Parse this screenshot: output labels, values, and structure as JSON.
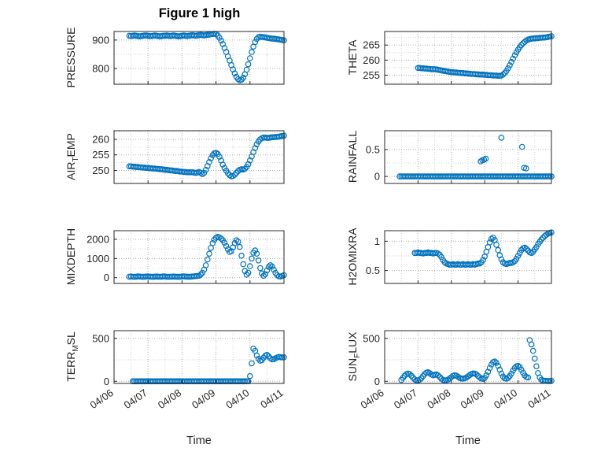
{
  "title": "Figure 1 high",
  "xlabel": "Time",
  "colors": {
    "marker": "#0072BD",
    "axis": "#262626",
    "grid": "#ADADAD",
    "grid_minor": "#D2D2D2",
    "tick_label": "#262626",
    "background": "#FFFFFF"
  },
  "x_ticks": {
    "values": [
      6,
      7,
      8,
      9,
      10,
      11
    ],
    "labels": [
      "04/06",
      "04/07",
      "04/08",
      "04/09",
      "04/10",
      "04/11"
    ]
  },
  "chart_data": [
    {
      "type": "scatter",
      "name": "pressure",
      "ylabel": {
        "pre": "PRESSURE",
        "sub": "",
        "post": ""
      },
      "xlim": [
        6,
        11
      ],
      "ylim": [
        745,
        930
      ],
      "yticks": [
        800,
        900
      ],
      "x_start": 6.45,
      "x_step": 0.05,
      "y": [
        915,
        914,
        915,
        916,
        915,
        914,
        913,
        914,
        915,
        916,
        916,
        915,
        914,
        914,
        915,
        916,
        915,
        914,
        913,
        914,
        915,
        915,
        916,
        915,
        914,
        915,
        916,
        915,
        914,
        913,
        914,
        915,
        916,
        915,
        914,
        915,
        916,
        917,
        916,
        915,
        916,
        917,
        918,
        917,
        916,
        917,
        918,
        919,
        920,
        921,
        922,
        921,
        916,
        908,
        898,
        886,
        872,
        858,
        843,
        828,
        812,
        797,
        783,
        771,
        763,
        759,
        761,
        768,
        780,
        796,
        815,
        836,
        858,
        877,
        893,
        904,
        910,
        912,
        911,
        910,
        909,
        908,
        907,
        906,
        905,
        905,
        904,
        903,
        902,
        901,
        900,
        899
      ]
    },
    {
      "type": "scatter",
      "name": "theta",
      "ylabel": {
        "pre": "THETA",
        "sub": "",
        "post": ""
      },
      "xlim": [
        6,
        11
      ],
      "ylim": [
        252,
        269.5
      ],
      "yticks": [
        255,
        260,
        265
      ],
      "x_start": 7.0,
      "x_step": 0.05,
      "y": [
        257.4,
        257.4,
        257.3,
        257.3,
        257.2,
        257.2,
        257.1,
        257.1,
        257.0,
        257.0,
        257.0,
        256.9,
        256.8,
        256.7,
        256.6,
        256.5,
        256.4,
        256.3,
        256.2,
        256.1,
        256.0,
        256.0,
        255.9,
        255.9,
        255.8,
        255.8,
        255.7,
        255.7,
        255.6,
        255.6,
        255.5,
        255.5,
        255.4,
        255.4,
        255.4,
        255.3,
        255.3,
        255.2,
        255.2,
        255.2,
        255.1,
        255.1,
        255.0,
        255.0,
        255.0,
        254.9,
        254.9,
        254.9,
        254.8,
        254.8,
        254.9,
        255.2,
        255.7,
        256.4,
        257.3,
        258.3,
        259.4,
        260.5,
        261.6,
        262.6,
        263.5,
        264.3,
        265.0,
        265.6,
        266.1,
        266.5,
        266.8,
        267.0,
        267.1,
        267.2,
        267.2,
        267.3,
        267.3,
        267.4,
        267.4,
        267.5,
        267.5,
        267.6,
        267.7,
        267.8,
        267.9
      ]
    },
    {
      "type": "scatter",
      "name": "air-temp",
      "ylabel": {
        "pre": "AIR",
        "sub": "T",
        "post": "EMP"
      },
      "xlim": [
        6,
        11
      ],
      "ylim": [
        245.8,
        262.8
      ],
      "yticks": [
        250,
        255,
        260
      ],
      "x_start": 6.45,
      "x_step": 0.05,
      "y": [
        251.3,
        251.3,
        251.2,
        251.2,
        251.1,
        251.1,
        251.0,
        251.0,
        250.9,
        250.9,
        250.8,
        250.8,
        250.7,
        250.7,
        250.6,
        250.6,
        250.5,
        250.5,
        250.4,
        250.4,
        250.3,
        250.2,
        250.2,
        250.1,
        250.0,
        250.0,
        249.9,
        249.8,
        249.8,
        249.7,
        249.6,
        249.6,
        249.5,
        249.5,
        249.4,
        249.4,
        249.4,
        249.4,
        249.3,
        249.2,
        249.3,
        249.5,
        249.2,
        248.8,
        249.2,
        250.2,
        251.4,
        252.7,
        253.9,
        254.9,
        255.5,
        255.7,
        255.3,
        254.4,
        253.2,
        251.9,
        250.8,
        249.9,
        249.1,
        248.5,
        248.1,
        248.2,
        248.6,
        249.2,
        249.8,
        250.2,
        250.4,
        250.3,
        250.5,
        251.1,
        252.0,
        253.2,
        254.5,
        255.9,
        257.2,
        258.4,
        259.3,
        260.0,
        260.4,
        260.6,
        260.6,
        260.5,
        260.5,
        260.6,
        260.7,
        260.7,
        260.8,
        260.8,
        260.9,
        261.0,
        261.1,
        261.2
      ]
    },
    {
      "type": "scatter",
      "name": "rainfall",
      "ylabel": {
        "pre": "RAINFALL",
        "sub": "",
        "post": ""
      },
      "xlim": [
        6,
        11
      ],
      "ylim": [
        -0.13,
        0.85
      ],
      "yticks": [
        0,
        0.5
      ],
      "x_start": 6.45,
      "x_step": 0.05,
      "y": [
        0,
        0,
        0,
        0,
        0,
        0,
        0,
        0,
        0,
        0,
        0,
        0,
        0,
        0,
        0,
        0,
        0,
        0,
        0,
        0,
        0,
        0,
        0,
        0,
        0,
        0,
        0,
        0,
        0,
        0,
        0,
        0,
        0,
        0,
        0,
        0,
        0,
        0,
        0,
        0,
        0,
        0,
        0,
        0,
        0,
        0,
        0,
        0,
        0,
        0,
        0,
        0,
        0,
        0,
        0,
        0,
        0,
        0,
        0,
        0,
        0,
        0,
        0,
        0,
        0,
        0,
        0,
        0,
        0,
        0,
        0,
        0,
        0,
        0,
        0,
        0,
        0,
        0,
        0,
        0,
        0,
        0,
        0,
        0,
        0,
        0,
        0,
        0,
        0,
        0,
        0,
        0
      ],
      "extra": {
        "x": [
          8.88,
          8.93,
          8.98,
          9.03,
          9.5,
          10.12,
          10.18,
          10.24
        ],
        "y": [
          0.28,
          0.3,
          0.31,
          0.33,
          0.72,
          0.55,
          0.16,
          0.15
        ]
      }
    },
    {
      "type": "scatter",
      "name": "mixdepth",
      "ylabel": {
        "pre": "MIXDEPTH",
        "sub": "",
        "post": ""
      },
      "xlim": [
        6,
        11
      ],
      "ylim": [
        -300,
        2450
      ],
      "yticks": [
        0,
        1000,
        2000
      ],
      "x_start": 6.45,
      "x_step": 0.05,
      "y": [
        55,
        60,
        50,
        45,
        55,
        65,
        60,
        50,
        45,
        50,
        60,
        65,
        55,
        50,
        45,
        55,
        60,
        55,
        50,
        55,
        65,
        60,
        50,
        45,
        50,
        55,
        60,
        55,
        50,
        45,
        50,
        60,
        65,
        60,
        55,
        50,
        55,
        60,
        70,
        80,
        90,
        100,
        160,
        260,
        420,
        650,
        950,
        1250,
        1550,
        1800,
        1980,
        2080,
        2130,
        2100,
        2040,
        1950,
        1820,
        1650,
        1480,
        1340,
        1380,
        1580,
        1800,
        1950,
        1880,
        1600,
        1150,
        700,
        350,
        160,
        260,
        600,
        1000,
        1300,
        1420,
        1250,
        900,
        500,
        220,
        100,
        180,
        380,
        560,
        650,
        580,
        420,
        250,
        130,
        70,
        60,
        90,
        130
      ]
    },
    {
      "type": "scatter",
      "name": "h2omixra",
      "ylabel": {
        "pre": "H2OMIXRA",
        "sub": "",
        "post": ""
      },
      "xlim": [
        6,
        11
      ],
      "ylim": [
        0.28,
        1.18
      ],
      "yticks": [
        0.5,
        1
      ],
      "x_start": 6.9,
      "x_step": 0.05,
      "y": [
        0.8,
        0.8,
        0.81,
        0.8,
        0.8,
        0.79,
        0.8,
        0.8,
        0.81,
        0.8,
        0.8,
        0.79,
        0.8,
        0.8,
        0.79,
        0.77,
        0.73,
        0.68,
        0.64,
        0.62,
        0.61,
        0.6,
        0.6,
        0.61,
        0.6,
        0.6,
        0.61,
        0.6,
        0.6,
        0.61,
        0.6,
        0.6,
        0.61,
        0.6,
        0.6,
        0.61,
        0.6,
        0.61,
        0.62,
        0.62,
        0.64,
        0.68,
        0.74,
        0.82,
        0.9,
        0.98,
        1.04,
        1.06,
        1.02,
        0.94,
        0.85,
        0.76,
        0.69,
        0.64,
        0.62,
        0.61,
        0.62,
        0.63,
        0.63,
        0.64,
        0.66,
        0.7,
        0.75,
        0.8,
        0.85,
        0.88,
        0.89,
        0.87,
        0.84,
        0.81,
        0.8,
        0.82,
        0.86,
        0.9,
        0.95,
        0.99,
        1.03,
        1.06,
        1.09,
        1.11,
        1.13,
        1.14,
        1.15
      ]
    },
    {
      "type": "scatter",
      "name": "terr-msl",
      "ylabel": {
        "pre": "TERR",
        "sub": "M",
        "post": "SL"
      },
      "xlim": [
        6,
        11
      ],
      "ylim": [
        -25,
        590
      ],
      "yticks": [
        0,
        500
      ],
      "x_start": 6.55,
      "x_step": 0.05,
      "y": [
        0,
        0,
        0,
        0,
        0,
        0,
        0,
        0,
        0,
        0,
        0,
        0,
        0,
        0,
        0,
        0,
        0,
        0,
        0,
        0,
        0,
        0,
        0,
        0,
        0,
        0,
        0,
        0,
        0,
        0,
        0,
        0,
        0,
        0,
        0,
        0,
        0,
        0,
        0,
        0,
        0,
        0,
        0,
        0,
        0,
        0,
        0,
        0,
        0,
        0,
        0,
        0,
        0,
        0,
        0,
        0,
        0,
        0,
        0,
        0,
        0,
        0,
        0,
        0,
        0,
        0,
        0,
        0,
        0,
        60,
        210,
        380,
        355,
        300,
        262,
        240,
        248,
        275,
        298,
        308,
        292,
        268,
        255,
        258,
        268,
        278,
        284,
        281,
        278,
        280
      ]
    },
    {
      "type": "scatter",
      "name": "sun-flux",
      "ylabel": {
        "pre": "SUN",
        "sub": "F",
        "post": "LUX"
      },
      "xlim": [
        6,
        11
      ],
      "ylim": [
        -25,
        590
      ],
      "yticks": [
        0,
        500
      ],
      "x_start": 6.5,
      "x_step": 0.05,
      "y": [
        15,
        40,
        65,
        82,
        90,
        83,
        65,
        42,
        22,
        12,
        10,
        18,
        35,
        60,
        85,
        100,
        105,
        95,
        80,
        70,
        75,
        80,
        70,
        50,
        30,
        15,
        10,
        12,
        20,
        32,
        48,
        62,
        70,
        65,
        52,
        40,
        32,
        30,
        35,
        45,
        58,
        72,
        85,
        92,
        90,
        80,
        62,
        45,
        32,
        28,
        40,
        70,
        110,
        155,
        195,
        222,
        230,
        215,
        180,
        135,
        90,
        55,
        35,
        30,
        40,
        60,
        90,
        125,
        155,
        175,
        180,
        165,
        135,
        100,
        68,
        48,
        45,
        480,
        430,
        355,
        265,
        175,
        95,
        45,
        18,
        8,
        5,
        4,
        3,
        3,
        4
      ]
    }
  ]
}
